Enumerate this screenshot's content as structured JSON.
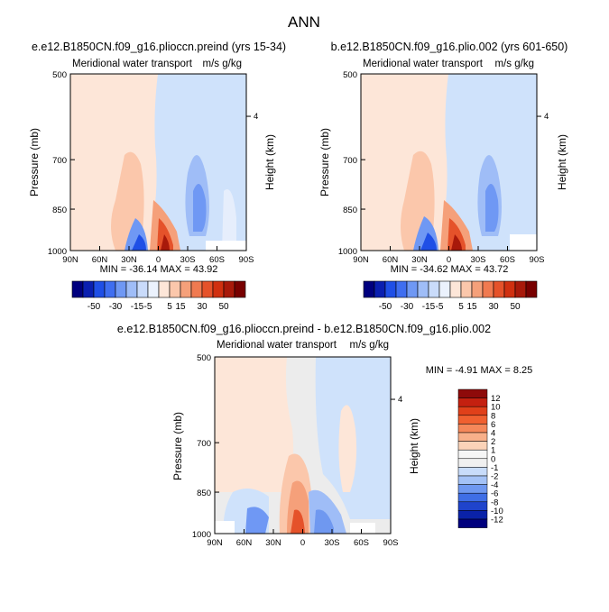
{
  "figure_title": "ANN",
  "panels": [
    {
      "title": "e.e12.B1850CN.f09_g16.plioccn.preind (yrs 15-34)",
      "subtitle": "Meridional water transport",
      "units": "m/s g/kg",
      "stats": "MIN = -36.14   MAX =  43.92"
    },
    {
      "title": "b.e12.B1850CN.f09_g16.plio.002 (yrs 601-650)",
      "subtitle": "Meridional water transport",
      "units": "m/s g/kg",
      "stats": "MIN = -34.62   MAX =  43.72"
    },
    {
      "title": "e.e12.B1850CN.f09_g16.plioccn.preind - b.e12.B1850CN.f09_g16.plio.002",
      "subtitle": "Meridional water transport",
      "units": "m/s g/kg",
      "stats": "MIN =    -4.91   MAX =    8.25"
    }
  ],
  "axes": {
    "ylabel": "Pressure (mb)",
    "y2label": "Height (km)",
    "y_ticks": [
      "500",
      "700",
      "850",
      "1000"
    ],
    "y2_ticks": [
      "4"
    ],
    "x_ticks": [
      "90N",
      "60N",
      "30N",
      "0",
      "30S",
      "60S",
      "90S"
    ]
  },
  "colorbar_top": {
    "labels": [
      "-50",
      "-30",
      "-15",
      "-5",
      "5",
      "15",
      "30",
      "50"
    ],
    "colors": [
      "#00007e",
      "#0a1fb0",
      "#1f4fe6",
      "#3f6ef0",
      "#6f98f4",
      "#9fbdf7",
      "#c9dbfa",
      "#ebf2fd",
      "#fde6d8",
      "#fbc7ab",
      "#f5a07a",
      "#f07a50",
      "#e5522a",
      "#d03010",
      "#a8190a",
      "#780000"
    ]
  },
  "colorbar_bottom": {
    "labels": [
      "12",
      "10",
      "8",
      "6",
      "4",
      "2",
      "1",
      "0",
      "-1",
      "-2",
      "-4",
      "-6",
      "-8",
      "-10",
      "-12"
    ],
    "colors": [
      "#8e0a0a",
      "#c42010",
      "#e0401a",
      "#f06030",
      "#f5885a",
      "#f8b08a",
      "#fbd3b8",
      "#f6f6f6",
      "#f0f0f0",
      "#c8dcfa",
      "#a4c2f6",
      "#6f98f0",
      "#3f6ee6",
      "#1f44cc",
      "#0a22a8",
      "#00007e"
    ]
  },
  "chart_data": [
    {
      "type": "heatmap",
      "title": "e.e12.B1850CN.f09_g16.plioccn.preind (yrs 15-34)",
      "subtitle": "Meridional water transport",
      "units": "m/s g/kg",
      "ylabel": "Pressure (mb)",
      "y2label": "Height (km)",
      "xlim": [
        "90N",
        "90S"
      ],
      "ylim": [
        1000,
        500
      ],
      "min": -36.14,
      "max": 43.92
    },
    {
      "type": "heatmap",
      "title": "b.e12.B1850CN.f09_g16.plio.002 (yrs 601-650)",
      "subtitle": "Meridional water transport",
      "units": "m/s g/kg",
      "ylabel": "Pressure (mb)",
      "y2label": "Height (km)",
      "xlim": [
        "90N",
        "90S"
      ],
      "ylim": [
        1000,
        500
      ],
      "min": -34.62,
      "max": 43.72
    },
    {
      "type": "heatmap",
      "title": "e.e12.B1850CN.f09_g16.plioccn.preind - b.e12.B1850CN.f09_g16.plio.002",
      "subtitle": "Meridional water transport",
      "units": "m/s g/kg",
      "ylabel": "Pressure (mb)",
      "y2label": "Height (km)",
      "xlim": [
        "90N",
        "90S"
      ],
      "ylim": [
        1000,
        500
      ],
      "min": -4.91,
      "max": 8.25
    }
  ]
}
